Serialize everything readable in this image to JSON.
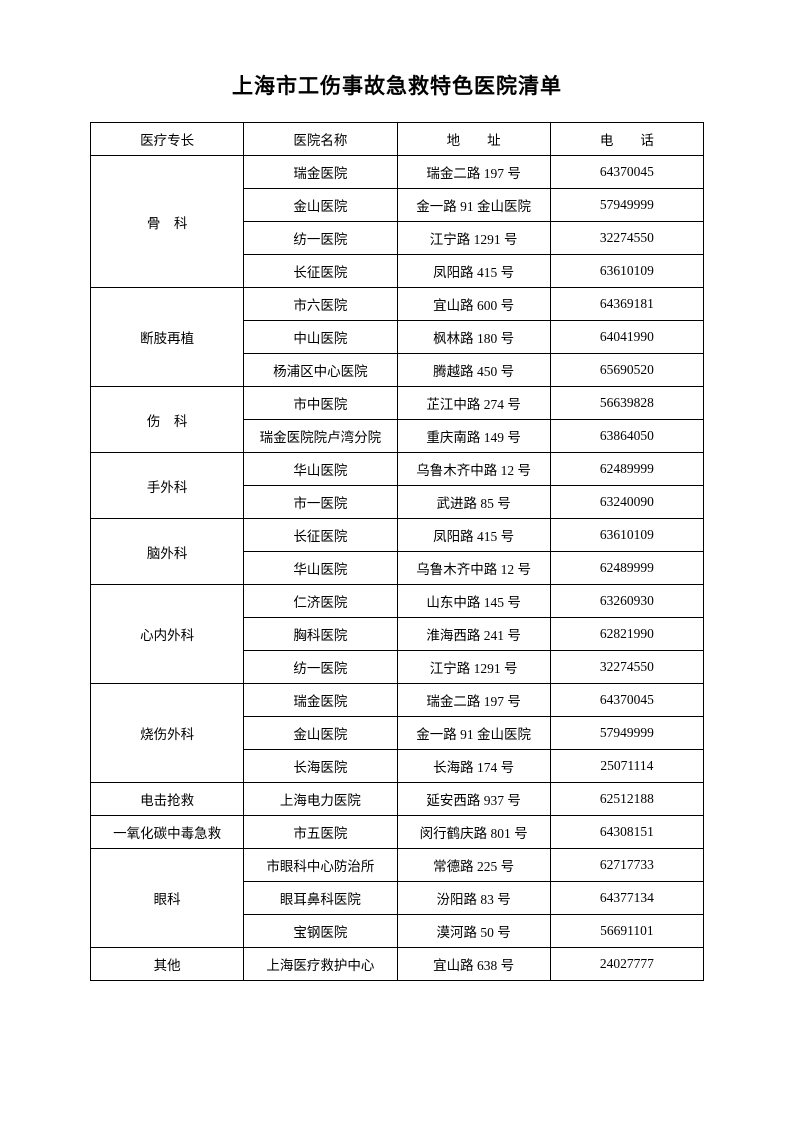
{
  "title": "上海市工伤事故急救特色医院清单",
  "headers": {
    "col1": "医疗专长",
    "col2": "医院名称",
    "col3": "地　　址",
    "col4": "电　　话"
  },
  "groups": [
    {
      "specialty": "骨　科",
      "rows": [
        {
          "hospital": "瑞金医院",
          "address": "瑞金二路 197 号",
          "phone": "64370045"
        },
        {
          "hospital": "金山医院",
          "address": "金一路 91 金山医院",
          "phone": "57949999"
        },
        {
          "hospital": "纺一医院",
          "address": "江宁路 1291 号",
          "phone": "32274550"
        },
        {
          "hospital": "长征医院",
          "address": "凤阳路 415 号",
          "phone": "63610109"
        }
      ]
    },
    {
      "specialty": "断肢再植",
      "rows": [
        {
          "hospital": "市六医院",
          "address": "宜山路 600 号",
          "phone": "64369181"
        },
        {
          "hospital": "中山医院",
          "address": "枫林路 180 号",
          "phone": "64041990"
        },
        {
          "hospital": "杨浦区中心医院",
          "address": "腾越路 450 号",
          "phone": "65690520"
        }
      ]
    },
    {
      "specialty": "伤　科",
      "rows": [
        {
          "hospital": "市中医院",
          "address": "芷江中路 274 号",
          "phone": "56639828"
        },
        {
          "hospital": "瑞金医院院卢湾分院",
          "address": "重庆南路 149 号",
          "phone": "63864050"
        }
      ]
    },
    {
      "specialty": "手外科",
      "rows": [
        {
          "hospital": "华山医院",
          "address": "乌鲁木齐中路 12 号",
          "phone": "62489999"
        },
        {
          "hospital": "市一医院",
          "address": "武进路 85 号",
          "phone": "63240090"
        }
      ]
    },
    {
      "specialty": "脑外科",
      "rows": [
        {
          "hospital": "长征医院",
          "address": "凤阳路 415 号",
          "phone": "63610109"
        },
        {
          "hospital": "华山医院",
          "address": "乌鲁木齐中路 12 号",
          "phone": "62489999"
        }
      ]
    },
    {
      "specialty": "心内外科",
      "rows": [
        {
          "hospital": "仁济医院",
          "address": "山东中路 145 号",
          "phone": "63260930"
        },
        {
          "hospital": "胸科医院",
          "address": "淮海西路 241 号",
          "phone": "62821990"
        },
        {
          "hospital": "纺一医院",
          "address": "江宁路 1291 号",
          "phone": "32274550"
        }
      ]
    },
    {
      "specialty": "烧伤外科",
      "rows": [
        {
          "hospital": "瑞金医院",
          "address": "瑞金二路 197 号",
          "phone": "64370045"
        },
        {
          "hospital": "金山医院",
          "address": "金一路 91 金山医院",
          "phone": "57949999"
        },
        {
          "hospital": "长海医院",
          "address": "长海路 174 号",
          "phone": "25071114"
        }
      ]
    },
    {
      "specialty": "电击抢救",
      "rows": [
        {
          "hospital": "上海电力医院",
          "address": "延安西路 937 号",
          "phone": "62512188"
        }
      ]
    },
    {
      "specialty": "一氧化碳中毒急救",
      "rows": [
        {
          "hospital": "市五医院",
          "address": "闵行鹤庆路 801 号",
          "phone": "64308151"
        }
      ]
    },
    {
      "specialty": "眼科",
      "rows": [
        {
          "hospital": "市眼科中心防治所",
          "address": "常德路 225 号",
          "phone": "62717733"
        },
        {
          "hospital": "眼耳鼻科医院",
          "address": "汾阳路 83 号",
          "phone": "64377134"
        },
        {
          "hospital": "宝钢医院",
          "address": "漠河路 50 号",
          "phone": "56691101"
        }
      ]
    },
    {
      "specialty": "其他",
      "rows": [
        {
          "hospital": "上海医疗救护中心",
          "address": "宜山路 638 号",
          "phone": "24027777"
        }
      ]
    }
  ]
}
